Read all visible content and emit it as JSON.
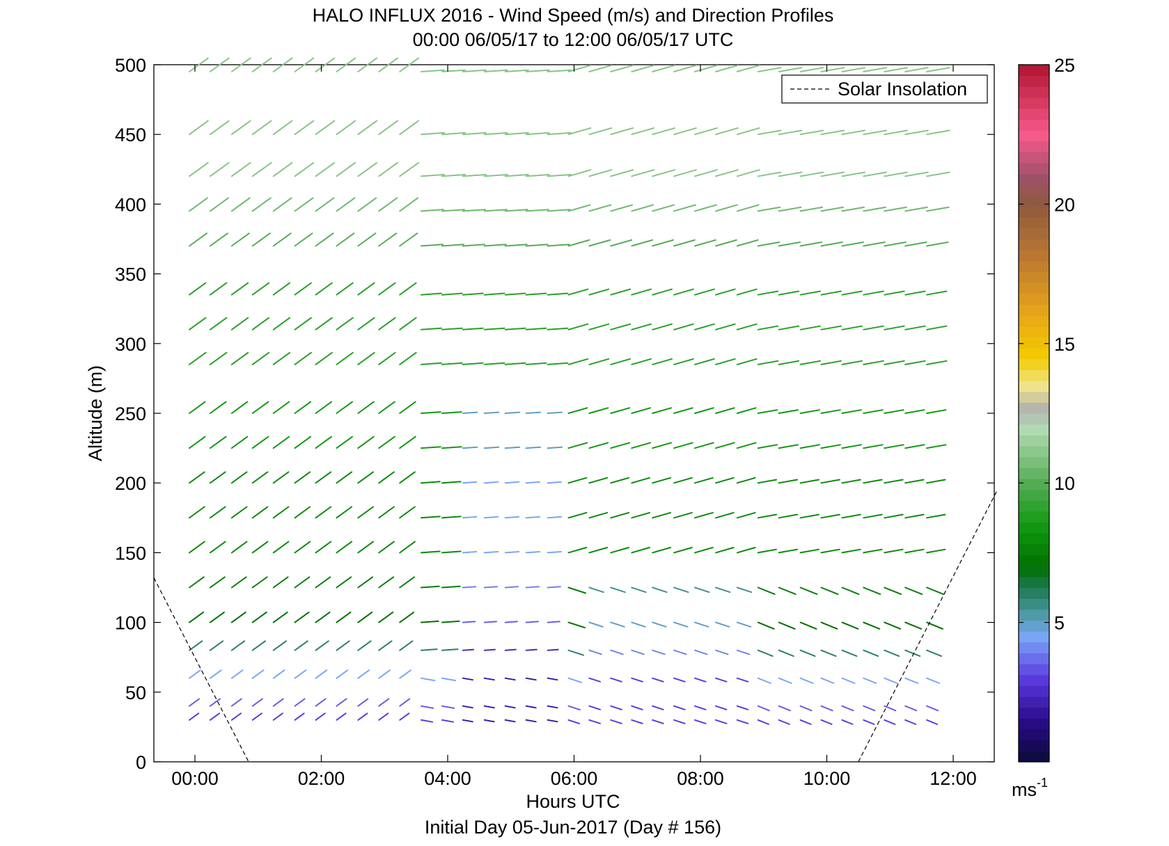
{
  "chart_data": {
    "type": "quiver",
    "title_line1": "HALO INFLUX 2016 - Wind Speed (m/s) and Direction Profiles",
    "title_line2": "00:00 06/05/17 to 12:00 06/05/17  UTC",
    "xlabel": "Hours UTC",
    "xlabel_sub": "Initial Day 05-Jun-2017 (Day # 156)",
    "ylabel": "Altitude (m)",
    "xlim": [
      -0.65,
      12.65
    ],
    "ylim": [
      0,
      500
    ],
    "x_ticks": [
      {
        "value": 0,
        "label": "00:00"
      },
      {
        "value": 2,
        "label": "02:00"
      },
      {
        "value": 4,
        "label": "04:00"
      },
      {
        "value": 6,
        "label": "06:00"
      },
      {
        "value": 8,
        "label": "08:00"
      },
      {
        "value": 10,
        "label": "10:00"
      },
      {
        "value": 12,
        "label": "12:00"
      }
    ],
    "y_ticks": [
      {
        "value": 0,
        "label": "0"
      },
      {
        "value": 50,
        "label": "50"
      },
      {
        "value": 100,
        "label": "100"
      },
      {
        "value": 150,
        "label": "150"
      },
      {
        "value": 200,
        "label": "200"
      },
      {
        "value": 250,
        "label": "250"
      },
      {
        "value": 300,
        "label": "300"
      },
      {
        "value": 350,
        "label": "350"
      },
      {
        "value": 400,
        "label": "400"
      },
      {
        "value": 450,
        "label": "450"
      },
      {
        "value": 500,
        "label": "500"
      }
    ],
    "legend": {
      "label": "Solar Insolation",
      "position": "top-right",
      "style": "dashed"
    },
    "solar_insolation_lines": [
      [
        [
          -0.65,
          132
        ],
        [
          0.85,
          0
        ]
      ],
      [
        [
          10.5,
          0
        ],
        [
          12.7,
          195
        ]
      ]
    ],
    "colorbar": {
      "label": "ms",
      "label_sup": "-1",
      "range": [
        0,
        25
      ],
      "ticks": [
        {
          "value": 5,
          "label": "5"
        },
        {
          "value": 10,
          "label": "10"
        },
        {
          "value": 15,
          "label": "15"
        },
        {
          "value": 20,
          "label": "20"
        },
        {
          "value": 25,
          "label": "25"
        }
      ],
      "colormap": [
        {
          "v": 0.0,
          "c": "#0b0b3a"
        },
        {
          "v": 1.5,
          "c": "#2a0b8a"
        },
        {
          "v": 3.0,
          "c": "#5b3be0"
        },
        {
          "v": 4.5,
          "c": "#7aa6f5"
        },
        {
          "v": 5.3,
          "c": "#4c9aa3"
        },
        {
          "v": 6.2,
          "c": "#1f7a55"
        },
        {
          "v": 7.0,
          "c": "#007000"
        },
        {
          "v": 8.5,
          "c": "#119911"
        },
        {
          "v": 10.0,
          "c": "#55ad55"
        },
        {
          "v": 12.0,
          "c": "#b6dcb6"
        },
        {
          "v": 12.6,
          "c": "#b0b0b0"
        },
        {
          "v": 13.5,
          "c": "#f0e48a"
        },
        {
          "v": 14.5,
          "c": "#f2cc00"
        },
        {
          "v": 16.0,
          "c": "#e8a817"
        },
        {
          "v": 18.0,
          "c": "#bd7a30"
        },
        {
          "v": 20.0,
          "c": "#8e5a3e"
        },
        {
          "v": 21.0,
          "c": "#a0506a"
        },
        {
          "v": 22.5,
          "c": "#f75a8c"
        },
        {
          "v": 25.0,
          "c": "#b01530"
        }
      ]
    },
    "vector_times": [
      0.0,
      0.33,
      0.67,
      1.0,
      1.33,
      1.67,
      2.0,
      2.33,
      2.67,
      3.0,
      3.33,
      3.67,
      4.0,
      4.33,
      4.67,
      5.0,
      5.33,
      5.67,
      6.0,
      6.33,
      6.67,
      7.0,
      7.33,
      7.67,
      8.0,
      8.33,
      8.67,
      9.0,
      9.33,
      9.67,
      10.0,
      10.33,
      10.67,
      11.0,
      11.33,
      11.67
    ],
    "profile_altitudes_m": [
      30,
      40,
      60,
      80,
      100,
      125,
      150,
      175,
      200,
      225,
      250,
      285,
      310,
      335,
      370,
      395,
      420,
      450,
      495
    ],
    "speed_by_altitude_m_s": [
      3,
      3.5,
      4.5,
      6,
      7,
      7.5,
      8,
      8,
      8,
      8.5,
      8.5,
      9,
      9,
      9,
      10,
      10.5,
      11,
      11,
      11
    ]
  }
}
